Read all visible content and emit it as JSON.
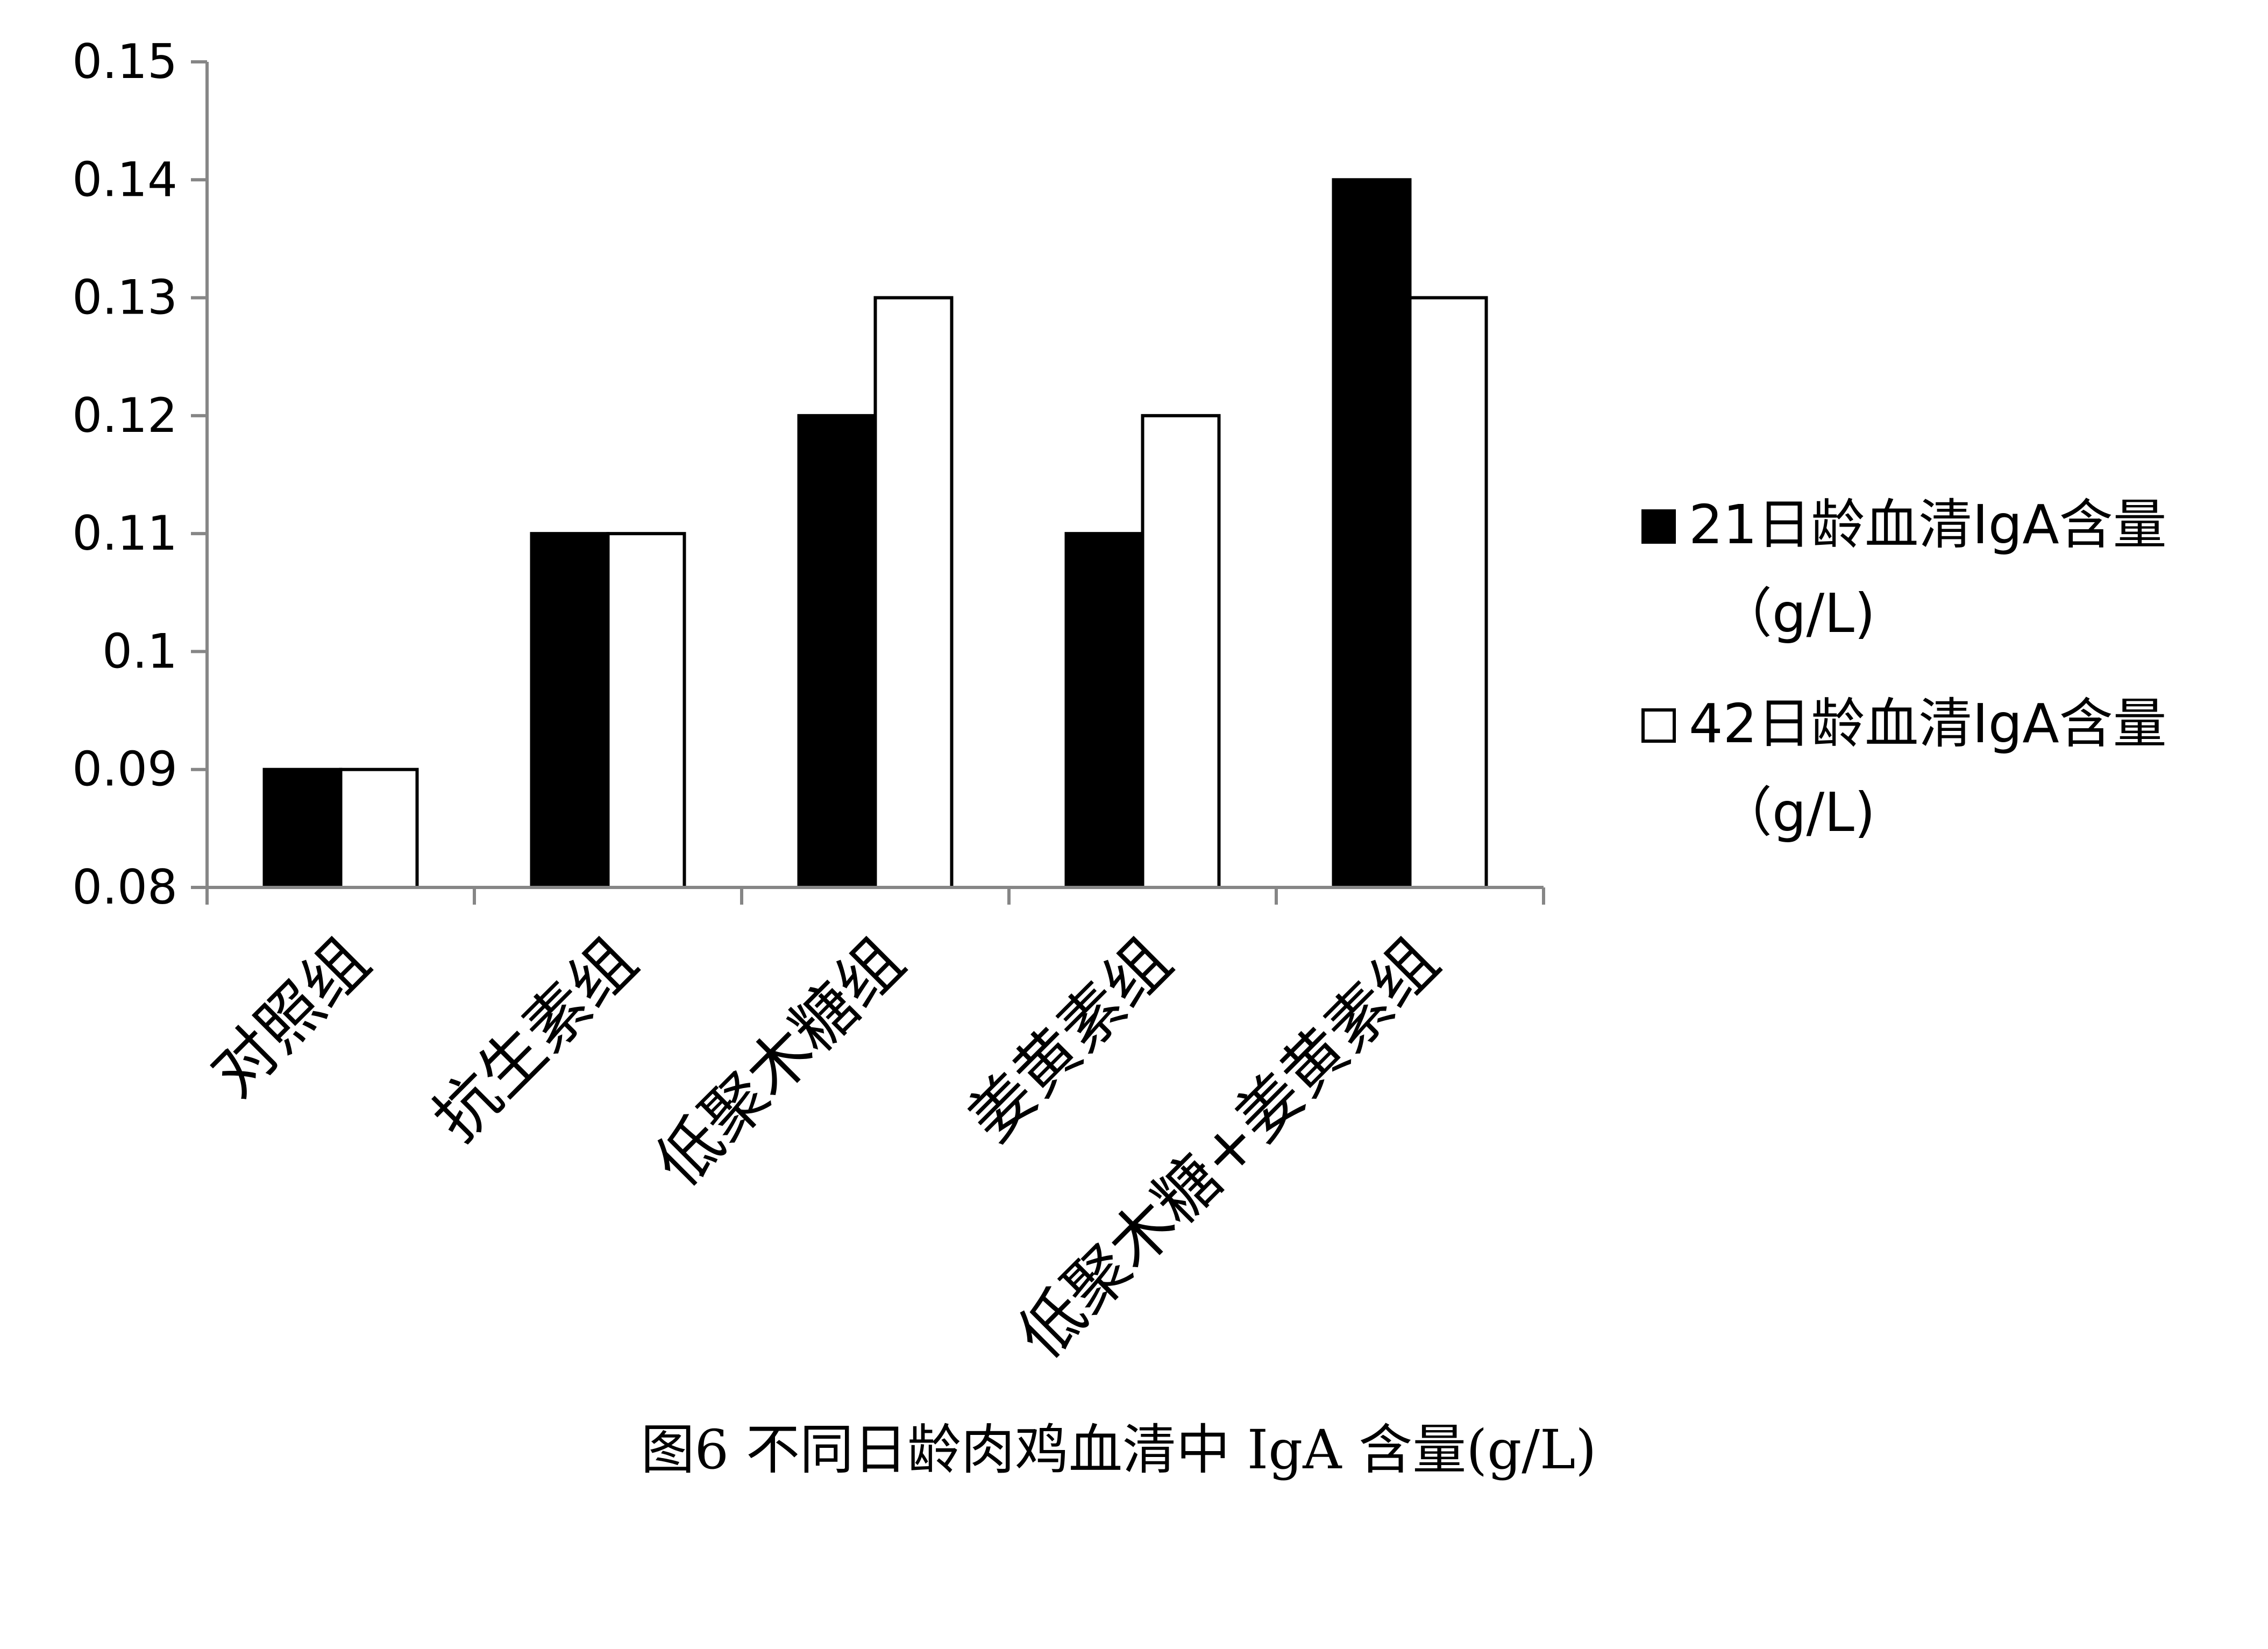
{
  "chart_data": {
    "type": "bar",
    "title": "",
    "xlabel": "",
    "ylabel": "",
    "categories": [
      "对照组",
      "抗生素组",
      "低聚木糖组",
      "姜黄素组",
      "低聚木糖+姜黄素组"
    ],
    "series": [
      {
        "name": "21日龄血清IgA含量（g/L)",
        "name_lines": [
          "21日龄血清IgA含量",
          "（g/L)"
        ],
        "fill": "#000000",
        "values": [
          0.09,
          0.11,
          0.12,
          0.11,
          0.14
        ]
      },
      {
        "name": "42日龄血清IgA含量（g/L)",
        "name_lines": [
          "42日龄血清IgA含量",
          "（g/L)"
        ],
        "fill": "#ffffff",
        "values": [
          0.09,
          0.11,
          0.13,
          0.12,
          0.13
        ]
      }
    ],
    "ylim": [
      0.08,
      0.15
    ],
    "yticks": [
      0.08,
      0.09,
      0.1,
      0.11,
      0.12,
      0.13,
      0.14,
      0.15
    ],
    "ytick_labels": [
      "0.08",
      "0.09",
      "0.1",
      "0.11",
      "0.12",
      "0.13",
      "0.14",
      "0.15"
    ],
    "grid": false,
    "legend_position": "right"
  },
  "caption": "图6 不同日龄肉鸡血清中 IgA 含量(g/L)"
}
